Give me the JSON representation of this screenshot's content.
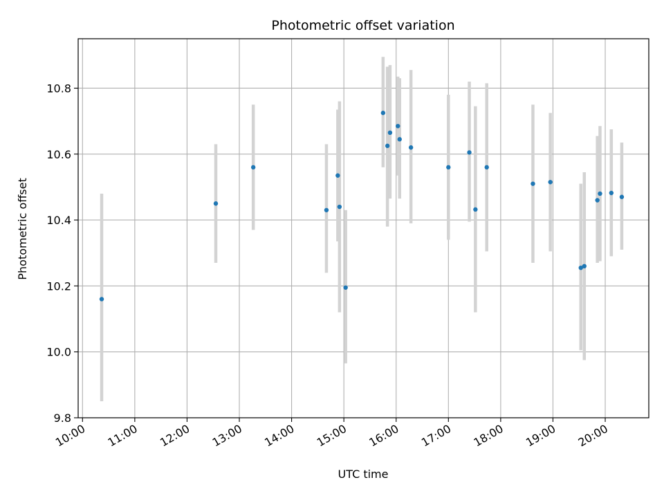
{
  "chart_data": {
    "type": "scatter",
    "title": "Photometric offset variation",
    "xlabel": "UTC time",
    "ylabel": "Photometric offset",
    "x_axis": {
      "range": [
        "09:55",
        "20:50"
      ],
      "ticks": [
        "10:00",
        "11:00",
        "12:00",
        "13:00",
        "14:00",
        "15:00",
        "16:00",
        "17:00",
        "18:00",
        "19:00",
        "20:00"
      ]
    },
    "y_axis": {
      "range": [
        9.8,
        10.95
      ],
      "ticks": [
        "9.8",
        "10.0",
        "10.2",
        "10.4",
        "10.6",
        "10.8"
      ]
    },
    "grid": true,
    "colors": {
      "point": "#1f77b4",
      "errorbar": "#d3d3d3",
      "grid": "#b0b0b0"
    },
    "series": [
      {
        "points": [
          {
            "x": "10:22",
            "y": 10.16,
            "low": 9.85,
            "high": 10.48
          },
          {
            "x": "12:33",
            "y": 10.45,
            "low": 10.27,
            "high": 10.63
          },
          {
            "x": "13:16",
            "y": 10.56,
            "low": 10.37,
            "high": 10.75
          },
          {
            "x": "14:40",
            "y": 10.43,
            "low": 10.24,
            "high": 10.63
          },
          {
            "x": "14:53",
            "y": 10.535,
            "low": 10.335,
            "high": 10.735
          },
          {
            "x": "14:55",
            "y": 10.44,
            "low": 10.12,
            "high": 10.76
          },
          {
            "x": "15:02",
            "y": 10.195,
            "low": 9.965,
            "high": 10.43
          },
          {
            "x": "15:45",
            "y": 10.725,
            "low": 10.56,
            "high": 10.895
          },
          {
            "x": "15:50",
            "y": 10.625,
            "low": 10.38,
            "high": 10.865
          },
          {
            "x": "15:53",
            "y": 10.665,
            "low": 10.465,
            "high": 10.87
          },
          {
            "x": "16:02",
            "y": 10.685,
            "low": 10.535,
            "high": 10.835
          },
          {
            "x": "16:04",
            "y": 10.645,
            "low": 10.465,
            "high": 10.83
          },
          {
            "x": "16:17",
            "y": 10.62,
            "low": 10.39,
            "high": 10.855
          },
          {
            "x": "17:00",
            "y": 10.56,
            "low": 10.34,
            "high": 10.78
          },
          {
            "x": "17:24",
            "y": 10.605,
            "low": 10.395,
            "high": 10.82
          },
          {
            "x": "17:31",
            "y": 10.432,
            "low": 10.12,
            "high": 10.745
          },
          {
            "x": "17:44",
            "y": 10.56,
            "low": 10.305,
            "high": 10.815
          },
          {
            "x": "18:37",
            "y": 10.51,
            "low": 10.27,
            "high": 10.75
          },
          {
            "x": "18:57",
            "y": 10.515,
            "low": 10.305,
            "high": 10.725
          },
          {
            "x": "19:32",
            "y": 10.255,
            "low": 10.005,
            "high": 10.51
          },
          {
            "x": "19:36",
            "y": 10.26,
            "low": 9.975,
            "high": 10.545
          },
          {
            "x": "19:51",
            "y": 10.46,
            "low": 10.27,
            "high": 10.655
          },
          {
            "x": "19:54",
            "y": 10.48,
            "low": 10.275,
            "high": 10.685
          },
          {
            "x": "20:07",
            "y": 10.482,
            "low": 10.29,
            "high": 10.675
          },
          {
            "x": "20:19",
            "y": 10.47,
            "low": 10.31,
            "high": 10.635
          }
        ]
      }
    ]
  }
}
